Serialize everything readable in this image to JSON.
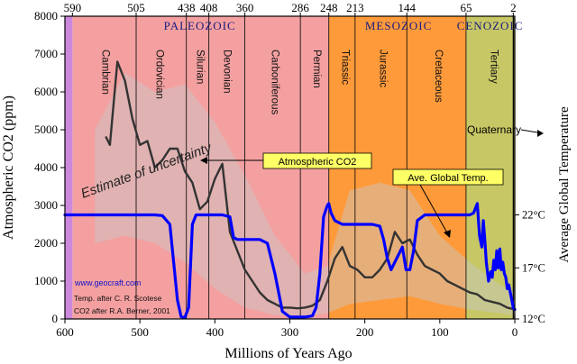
{
  "chart_data": {
    "type": "line",
    "xlabel": "Millions of Years Ago",
    "ylabel": "Atmospheric CO2 (ppm)",
    "y2label": "Average Global Temperature",
    "xlim": [
      600,
      0
    ],
    "ylim": [
      0,
      8000
    ],
    "x_ticks": [
      "600",
      "500",
      "400",
      "300",
      "200",
      "100",
      "0"
    ],
    "y_ticks": [
      "0",
      "1000",
      "2000",
      "3000",
      "4000",
      "5000",
      "6000",
      "7000",
      "8000"
    ],
    "top_ticks": [
      {
        "x": 590,
        "label": "590"
      },
      {
        "x": 505,
        "label": "505"
      },
      {
        "x": 438,
        "label": "438"
      },
      {
        "x": 408,
        "label": "408"
      },
      {
        "x": 360,
        "label": "360"
      },
      {
        "x": 286,
        "label": "286"
      },
      {
        "x": 248,
        "label": "248"
      },
      {
        "x": 213,
        "label": "213"
      },
      {
        "x": 144,
        "label": "144"
      },
      {
        "x": 65,
        "label": "65"
      },
      {
        "x": 2,
        "label": "2"
      }
    ],
    "temp_ticks": [
      {
        "y": 2750,
        "label": "22°C"
      },
      {
        "y": 1350,
        "label": "17°C"
      },
      {
        "y": 0,
        "label": "12°C"
      }
    ],
    "eras": [
      {
        "name": "PALEOZOIC",
        "start": 590,
        "end": 248,
        "color": "#f4a0a0"
      },
      {
        "name": "MESOZOIC",
        "start": 248,
        "end": 65,
        "color": "#ff9a3a"
      },
      {
        "name": "CENOZOIC",
        "start": 65,
        "end": 2,
        "color": "#c7c765"
      },
      {
        "name": "",
        "start": 600,
        "end": 590,
        "color": "#cc88dd"
      },
      {
        "name": "",
        "start": 2,
        "end": 0,
        "color": "#8a8a4a"
      }
    ],
    "periods": [
      {
        "name": "Cambrian",
        "x": 550,
        "y": 6500
      },
      {
        "name": "Ordovician",
        "x": 478,
        "y": 6500
      },
      {
        "name": "Silurian",
        "x": 424,
        "y": 6500
      },
      {
        "name": "Devonian",
        "x": 388,
        "y": 6500
      },
      {
        "name": "Carboniferous",
        "x": 324,
        "y": 6700
      },
      {
        "name": "Permian",
        "x": 268,
        "y": 6500
      },
      {
        "name": "Triassic",
        "x": 230,
        "y": 6500
      },
      {
        "name": "Jurassic",
        "x": 180,
        "y": 6500
      },
      {
        "name": "Cretaceous",
        "x": 106,
        "y": 6700
      },
      {
        "name": "Tertiary",
        "x": 32,
        "y": 6500
      }
    ],
    "quaternary_label": "Quaternary",
    "uncertainty_label": "Estimate of uncertainty",
    "series": [
      {
        "name": "Atmospheric CO2",
        "color": "#333333",
        "x": [
          545,
          540,
          530,
          520,
          510,
          500,
          490,
          480,
          470,
          460,
          450,
          440,
          430,
          420,
          410,
          400,
          390,
          380,
          370,
          360,
          350,
          340,
          330,
          320,
          310,
          300,
          290,
          280,
          270,
          260,
          250,
          240,
          230,
          220,
          210,
          200,
          190,
          180,
          170,
          160,
          150,
          140,
          130,
          120,
          110,
          100,
          90,
          80,
          70,
          60,
          50,
          40,
          30,
          20,
          10,
          0
        ],
        "y": [
          4800,
          4600,
          6800,
          6300,
          5300,
          4600,
          4700,
          4000,
          4200,
          4500,
          4500,
          3900,
          3600,
          2900,
          3100,
          3700,
          4100,
          2300,
          1800,
          1300,
          1000,
          700,
          500,
          400,
          300,
          300,
          280,
          300,
          350,
          500,
          1000,
          1600,
          1900,
          1400,
          1300,
          1100,
          1100,
          1300,
          1600,
          2300,
          2000,
          2100,
          1700,
          1400,
          1300,
          1200,
          1000,
          900,
          800,
          700,
          650,
          500,
          450,
          400,
          300,
          250
        ]
      },
      {
        "name": "Ave. Global Temp.",
        "color": "#0000ff",
        "x": [
          600,
          580,
          560,
          540,
          520,
          500,
          480,
          470,
          460,
          455,
          450,
          445,
          440,
          435,
          430,
          425,
          420,
          410,
          400,
          390,
          380,
          375,
          370,
          360,
          340,
          330,
          320,
          310,
          300,
          290,
          280,
          270,
          265,
          260,
          255,
          250,
          248,
          245,
          240,
          230,
          220,
          210,
          200,
          190,
          180,
          175,
          170,
          165,
          160,
          150,
          145,
          140,
          135,
          130,
          120,
          110,
          100,
          90,
          80,
          70,
          65,
          60,
          55,
          50,
          47,
          44,
          42,
          40,
          38,
          35,
          32,
          30,
          28,
          26,
          24,
          22,
          20,
          18,
          16,
          14,
          12,
          10,
          8,
          6,
          4,
          2,
          0
        ],
        "y": [
          2750,
          2750,
          2750,
          2750,
          2750,
          2750,
          2750,
          2730,
          2500,
          1500,
          500,
          60,
          40,
          300,
          2500,
          2750,
          2750,
          2750,
          2750,
          2750,
          2700,
          2150,
          2100,
          2100,
          2100,
          2000,
          1200,
          200,
          50,
          50,
          50,
          80,
          300,
          1200,
          2700,
          3000,
          3050,
          2800,
          2600,
          2500,
          2500,
          2500,
          2500,
          2500,
          2450,
          2100,
          1600,
          1300,
          1500,
          1900,
          1300,
          1300,
          1800,
          2600,
          2750,
          2750,
          2750,
          2750,
          2750,
          2750,
          2750,
          2750,
          2800,
          3050,
          2200,
          1900,
          2600,
          2100,
          1500,
          1000,
          1250,
          1100,
          1550,
          1300,
          1800,
          1350,
          1850,
          1300,
          1500,
          1200,
          1100,
          800,
          900,
          700,
          500,
          300,
          250
        ]
      }
    ],
    "callouts": {
      "co2": "Atmospheric CO2",
      "temp": "Ave. Global Temp."
    },
    "credits": {
      "site": "www.geocraft.com",
      "line1": "Temp. after C. R. Scotese",
      "line2": "CO2 after R.A. Berner, 2001"
    }
  }
}
